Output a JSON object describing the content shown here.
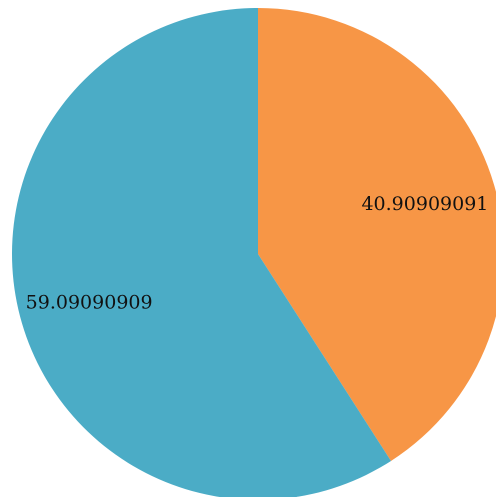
{
  "chart_data": {
    "type": "pie",
    "title": "",
    "start_angle_deg": 0,
    "direction": "clockwise",
    "legend": "none",
    "slices": [
      {
        "label": "40.90909091",
        "value": 40.90909091,
        "color": "#F79646"
      },
      {
        "label": "59.09090909",
        "value": 59.09090909,
        "color": "#4BACC6"
      }
    ]
  }
}
